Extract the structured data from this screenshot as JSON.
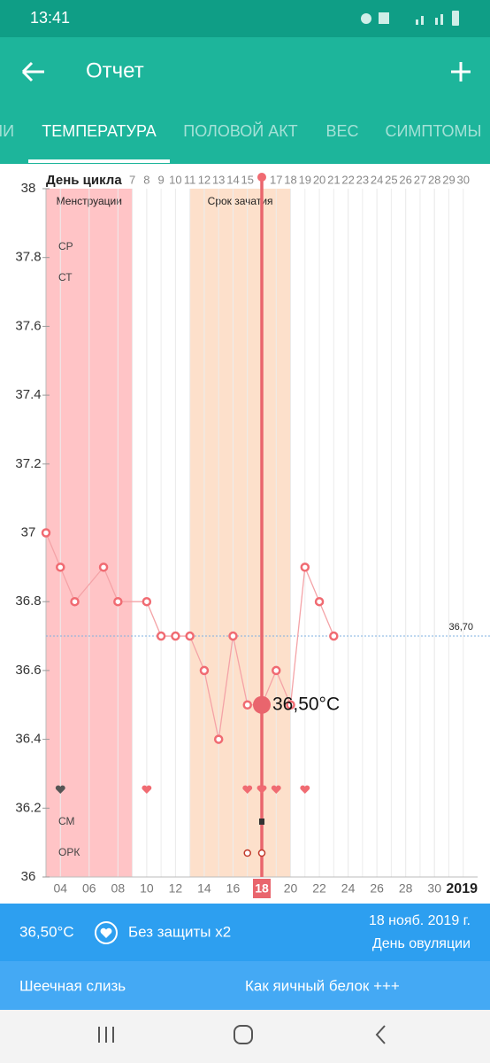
{
  "status_bar": {
    "time": "13:41"
  },
  "app_bar": {
    "title": "Отчет"
  },
  "tabs": [
    "ИИ",
    "ТЕМПЕРАТУРА",
    "ПОЛОВОЙ АКТ",
    "ВЕС",
    "СИМПТОМЫ"
  ],
  "active_tab": 1,
  "chart_data": {
    "type": "line",
    "x_title": "День цикла",
    "x": [
      1,
      2,
      3,
      5,
      6,
      8,
      9,
      10,
      11,
      12,
      13,
      14,
      15,
      16,
      17,
      18,
      19,
      20,
      21
    ],
    "series": [
      {
        "color": "#f4a3a7",
        "values": [
          37,
          36.9,
          36.8,
          36.9,
          36.8,
          36.8,
          36.7,
          36.7,
          36.7,
          36.6,
          36.4,
          36.7,
          36.5,
          36.5,
          36.6,
          36.5,
          36.9,
          36.8,
          36.7
        ]
      }
    ],
    "xlim": [
      1,
      31
    ],
    "xticks": [
      7,
      8,
      9,
      10,
      11,
      12,
      13,
      14,
      15,
      17,
      18,
      19,
      20,
      21,
      22,
      23,
      24,
      25,
      26,
      27,
      28,
      29,
      30
    ],
    "date_ticks": [
      {
        "value": 2,
        "label": "04"
      },
      {
        "value": 4,
        "label": "06"
      },
      {
        "value": 6,
        "label": "08"
      },
      {
        "value": 8,
        "label": "10"
      },
      {
        "value": 10,
        "label": "12"
      },
      {
        "value": 12,
        "label": "14"
      },
      {
        "value": 14,
        "label": "16"
      },
      {
        "value": 16,
        "label": "18"
      },
      {
        "value": 18,
        "label": "20"
      },
      {
        "value": 20,
        "label": "22"
      },
      {
        "value": 22,
        "label": "24"
      },
      {
        "value": 24,
        "label": "26"
      },
      {
        "value": 26,
        "label": "28"
      },
      {
        "value": 28,
        "label": "30"
      }
    ],
    "year": "2019",
    "ylim": [
      36,
      38
    ],
    "yticks": [
      36,
      36.2,
      36.4,
      36.6,
      36.8,
      37,
      37.2,
      37.4,
      37.6,
      37.8,
      38
    ],
    "bands": [
      {
        "name": "Менструации",
        "range": [
          1,
          7
        ],
        "color": "#ffc4c6"
      },
      {
        "name": "Срок зачатия",
        "range": [
          11,
          18
        ],
        "color": "#fde0cb"
      }
    ],
    "coverline": {
      "value": 36.7,
      "label": "36,70"
    },
    "selected": {
      "x": 16,
      "value": 36.5,
      "label": "36,50°C"
    },
    "row_labels": [
      "СР",
      "СТ",
      "СМ",
      "ОРК"
    ],
    "intercourse_x": [
      2,
      8,
      15,
      16,
      17,
      19
    ]
  },
  "day_info": {
    "temperature": "36,50°C",
    "sex": "Без защиты x2",
    "date": "18 нояб. 2019 г.",
    "status": "День овуляции"
  },
  "observation": {
    "name": "Шеечная слизь",
    "value": "Как яичный белок +++"
  }
}
